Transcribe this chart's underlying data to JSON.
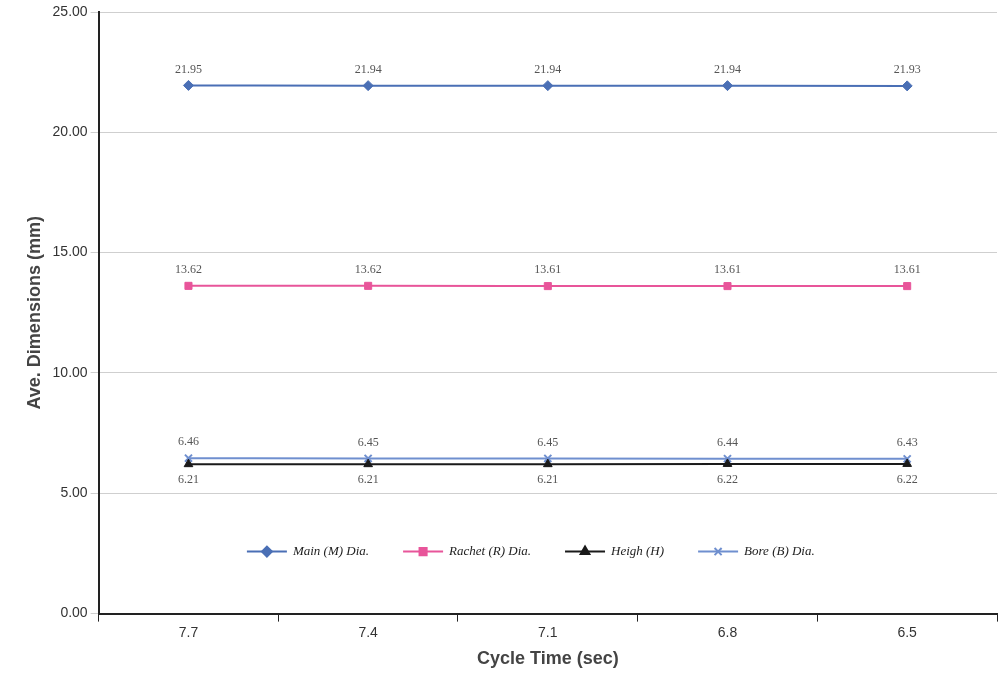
{
  "chart_data": {
    "type": "line",
    "xlabel": "Cycle Time (sec)",
    "ylabel": "Ave. Dimensions (mm)",
    "categories": [
      "7.7",
      "7.4",
      "7.1",
      "6.8",
      "6.5"
    ],
    "series": [
      {
        "name": "Main (M) Dia.",
        "color": "#4a6fb5",
        "marker": "diamond",
        "values": [
          21.95,
          21.94,
          21.94,
          21.94,
          21.93
        ]
      },
      {
        "name": "Rachet (R) Dia.",
        "color": "#e8559a",
        "marker": "square",
        "values": [
          13.62,
          13.62,
          13.61,
          13.61,
          13.61
        ]
      },
      {
        "name": "Heigh (H)",
        "color": "#1a1a1a",
        "marker": "triangle",
        "values": [
          6.21,
          6.21,
          6.21,
          6.22,
          6.22
        ]
      },
      {
        "name": "Bore (B) Dia.",
        "color": "#6f8fcf",
        "marker": "cross",
        "values": [
          6.46,
          6.45,
          6.45,
          6.44,
          6.43
        ]
      }
    ],
    "ylim": [
      0,
      25
    ],
    "yticks": [
      {
        "value": 0,
        "label": "0.00"
      },
      {
        "value": 5,
        "label": "5.00"
      },
      {
        "value": 10,
        "label": "10.00"
      },
      {
        "value": 15,
        "label": "15.00"
      },
      {
        "value": 20,
        "label": "20.00"
      },
      {
        "value": 25,
        "label": "25.00"
      }
    ],
    "grid": "y",
    "legend": "bottom",
    "data_labels": true,
    "line_style": "solid"
  }
}
